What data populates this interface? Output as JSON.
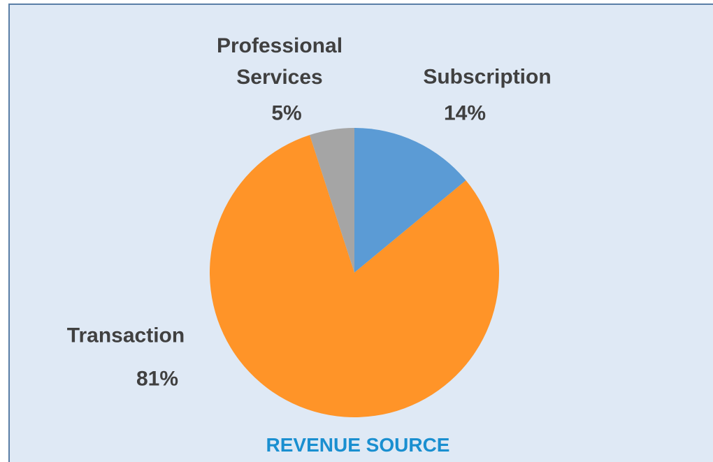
{
  "chart_data": {
    "type": "pie",
    "title": "REVENUE SOURCE",
    "categories": [
      "Subscription",
      "Transaction",
      "Professional Services"
    ],
    "values": [
      14,
      81,
      5
    ],
    "value_labels": [
      "14%",
      "81%",
      "5%"
    ],
    "colors": [
      "#5b9bd5",
      "#ff9428",
      "#a5a5a5"
    ]
  }
}
